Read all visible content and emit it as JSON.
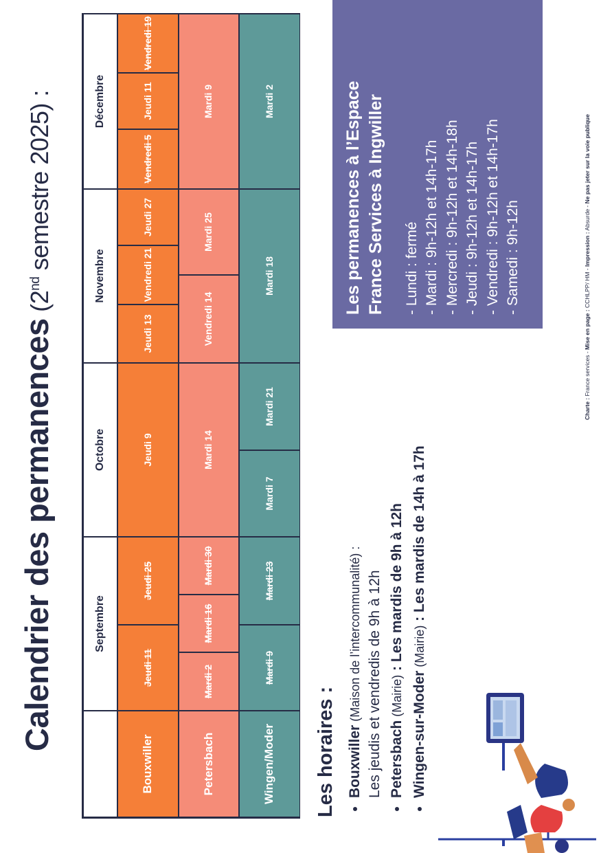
{
  "title": {
    "main": "Calendrier des permanences",
    "sub_open": " (2",
    "sub_sup": "nd",
    "sub_close": " semestre 2025) :"
  },
  "calendar": {
    "months": [
      "Septembre",
      "Octobre",
      "Novembre",
      "Décembre"
    ],
    "rows": [
      "Bouxwiller",
      "Petersbach",
      "Wingen/Moder"
    ],
    "bouxwiller": [
      "Jeudi 11",
      "Jeudi 25",
      "Jeudi 9",
      "Jeudi 13",
      "Vendredi 21",
      "Jeudi 27",
      "Vendredi 5",
      "Jeudi 11",
      "Vendredi 19"
    ],
    "petersbach": [
      "Mardi 2",
      "Mardi 16",
      "Mardi 30",
      "Mardi 14",
      "Vendredi 14",
      "Mardi 25",
      "Mardi 9"
    ],
    "wingen": [
      "Mardi 9",
      "Mardi 23",
      "Mardi 7",
      "Mardi 21",
      "Mardi 18",
      "Mardi 2"
    ]
  },
  "horaires": {
    "title": "Les horaires :",
    "items": [
      {
        "name": "Bouxwiller",
        "detail": " (Maison de l’intercommunalité) :",
        "line2": "Les jeudis et vendredis de 9h à 12h"
      },
      {
        "name": "Petersbach",
        "detail": " (Mairie)",
        "line2": " : Les mardis de 9h à 12h"
      },
      {
        "name": "Wingen-sur-Moder",
        "detail": " (Mairie)",
        "line2": " : Les mardis de 14h à 17h"
      }
    ]
  },
  "france_services": {
    "title_line1": "Les permanences à l’Espace",
    "title_line2": "France Services à Ingwiller",
    "lines": [
      "- Lundi : fermé",
      "- Mardi : 9h-12h et 14h-17h",
      "- Mercredi : 9h-12h et 14h-18h",
      "- Jeudi : 9h-12h et 14h-17h",
      "- Vendredi : 9h-12h et 14h-17h",
      "- Samedi : 9h-12h"
    ]
  },
  "credits": {
    "charte_label": "Charte :",
    "charte": " France services - ",
    "mise_label": "Mise en page :",
    "mise": " CCHLPP/ HM - ",
    "impression_label": "Impression :",
    "impression": " Absurde - ",
    "note": "Ne pas jeter sur la voie publique"
  },
  "colors": {
    "orange": "#f57f38",
    "salmon": "#f58c78",
    "teal": "#5e9a99",
    "navy": "#262b45",
    "purple": "#6a6aa3"
  }
}
